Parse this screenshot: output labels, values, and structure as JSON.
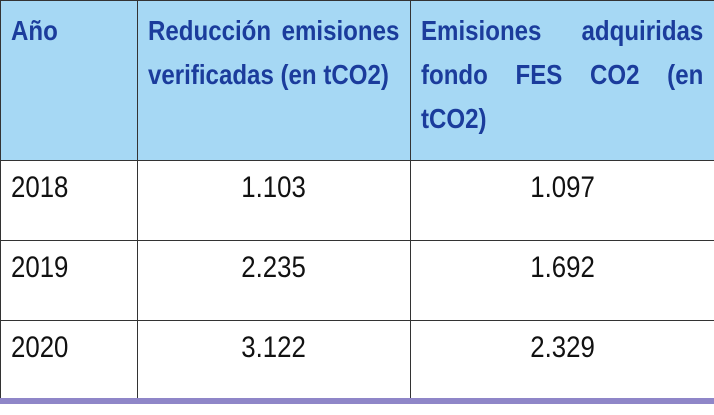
{
  "table": {
    "header": [
      "Año",
      "Reducción emisiones verificadas (en tCO2)",
      "Emisiones adquiridas fondo FES CO2 (en tCO2)"
    ],
    "rows": [
      [
        "2018",
        "1.103",
        "1.097"
      ],
      [
        "2019",
        "2.235",
        "1.692"
      ],
      [
        "2020",
        "3.122",
        "2.329"
      ]
    ]
  }
}
